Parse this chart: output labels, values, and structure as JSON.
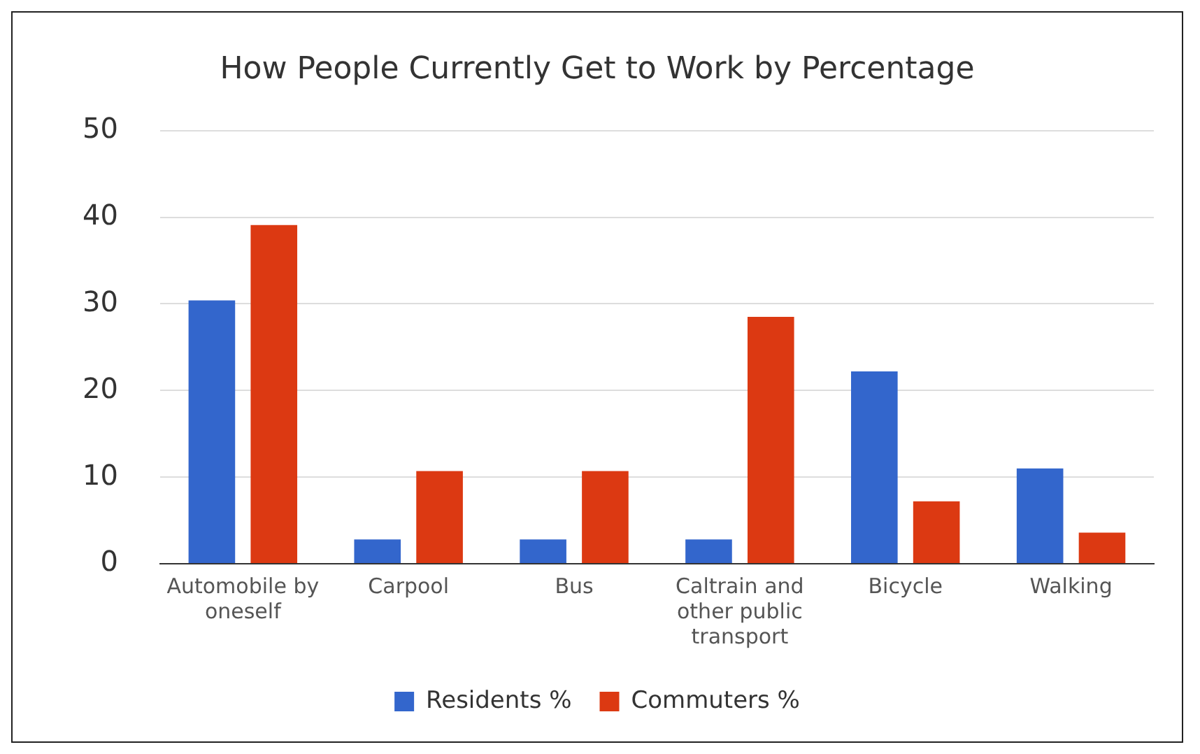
{
  "chart_data": {
    "type": "bar",
    "title": "How People Currently Get to Work by Percentage",
    "categories": [
      "Automobile by oneself",
      "Carpool",
      "Bus",
      "Caltrain and other public transport",
      "Bicycle",
      "Walking"
    ],
    "series": [
      {
        "name": "Residents %",
        "color": "#3366cc",
        "values": [
          30.4,
          2.8,
          2.8,
          2.8,
          22.2,
          11
        ]
      },
      {
        "name": "Commuters %",
        "color": "#dc3912",
        "values": [
          39.1,
          10.7,
          10.7,
          28.5,
          7.2,
          3.6
        ]
      }
    ],
    "ylim": [
      0,
      50
    ],
    "yticks": [
      0,
      10,
      20,
      30,
      40,
      50
    ],
    "grid": "y",
    "legend": "bottom"
  }
}
